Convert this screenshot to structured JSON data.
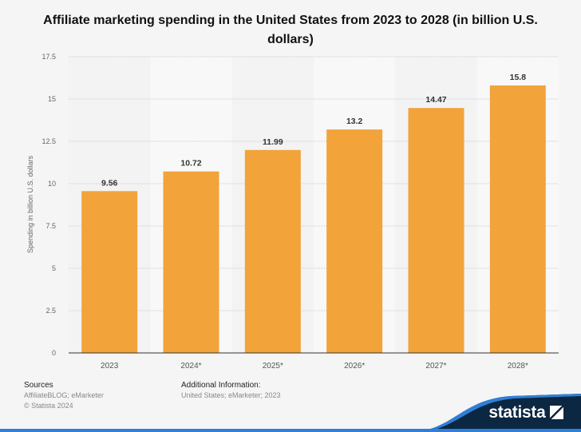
{
  "chart_data": {
    "type": "bar",
    "title": "Affiliate marketing spending in the United States from 2023 to 2028 (in billion U.S. dollars)",
    "xlabel": "",
    "ylabel": "Spending in billion U.S. dollars",
    "categories": [
      "2023",
      "2024*",
      "2025*",
      "2026*",
      "2027*",
      "2028*"
    ],
    "values": [
      9.56,
      10.72,
      11.99,
      13.2,
      14.47,
      15.8
    ],
    "value_labels": [
      "9.56",
      "10.72",
      "11.99",
      "13.2",
      "14.47",
      "15.8"
    ],
    "ylim": [
      0,
      17.5
    ],
    "yticks": [
      "0",
      "2.5",
      "5",
      "7.5",
      "10",
      "12.5",
      "15",
      "17.5"
    ],
    "grid": true,
    "bar_color": "#f2a33a"
  },
  "footer": {
    "sources_heading": "Sources",
    "sources": "AffiliateBLOG; eMarketer",
    "copyright": "© Statista 2024",
    "additional_heading": "Additional Information:",
    "additional": "United States; eMarketer; 2023",
    "logo": "statista"
  }
}
